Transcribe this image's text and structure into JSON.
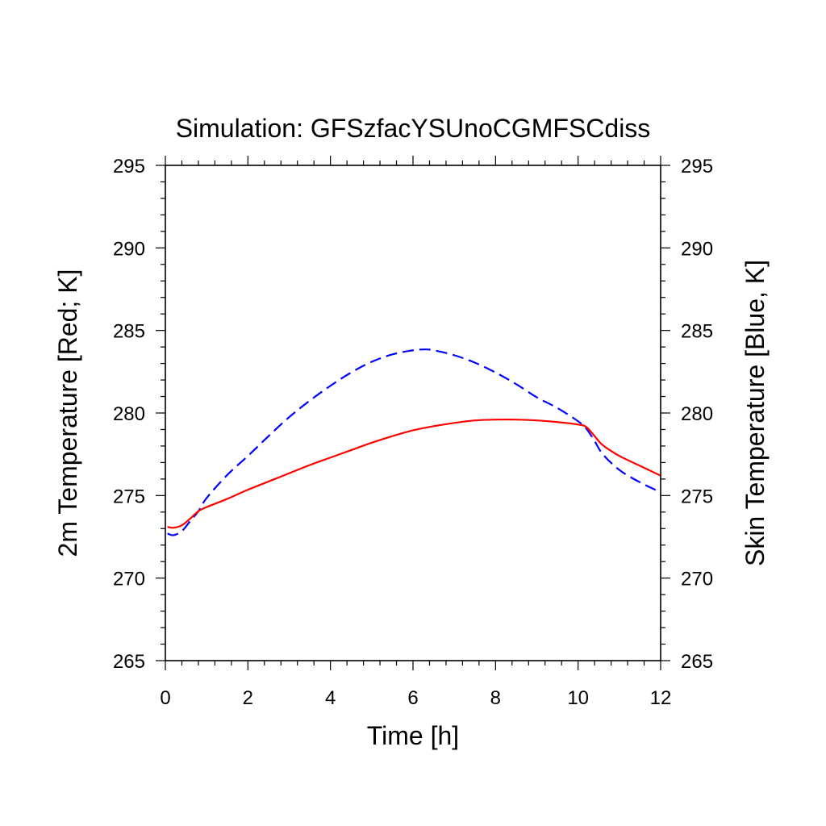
{
  "chart_data": {
    "type": "line",
    "title": "Simulation: GFSzfacYSUnoCGMFSCdiss",
    "xlabel": "Time [h]",
    "ylabel_left": "2m Temperature [Red; K]",
    "ylabel_right": "Skin Temperature [Blue, K]",
    "xlim": [
      0,
      12
    ],
    "ylim": [
      265,
      295
    ],
    "x_ticks": [
      "0",
      "2",
      "4",
      "6",
      "8",
      "10",
      "12"
    ],
    "y_ticks": [
      "265",
      "270",
      "275",
      "280",
      "285",
      "290",
      "295"
    ],
    "grid": false,
    "series": [
      {
        "axis": "left",
        "color": "#ff0000",
        "style": "solid",
        "x": [
          0.05,
          0.2,
          0.4,
          0.6,
          0.8,
          1.0,
          1.5,
          2.0,
          2.5,
          3.0,
          3.5,
          4.0,
          4.5,
          5.0,
          5.5,
          6.0,
          6.5,
          7.0,
          7.5,
          8.0,
          8.5,
          9.0,
          9.5,
          10.0,
          10.2,
          10.4,
          10.6,
          11.0,
          11.5,
          12.0
        ],
        "values": [
          273.1,
          273.05,
          273.2,
          273.6,
          274.05,
          274.3,
          274.8,
          275.35,
          275.85,
          276.35,
          276.85,
          277.3,
          277.75,
          278.2,
          278.6,
          278.95,
          279.2,
          279.4,
          279.55,
          279.6,
          279.6,
          279.55,
          279.45,
          279.3,
          279.15,
          278.6,
          278.05,
          277.4,
          276.8,
          276.2
        ]
      },
      {
        "axis": "right",
        "color": "#0000ff",
        "style": "dashed",
        "x": [
          0.05,
          0.2,
          0.4,
          0.6,
          0.8,
          1.0,
          1.5,
          2.0,
          2.5,
          3.0,
          3.5,
          4.0,
          4.5,
          5.0,
          5.5,
          6.0,
          6.3,
          6.5,
          7.0,
          7.5,
          8.0,
          8.5,
          9.0,
          9.5,
          10.0,
          10.2,
          10.4,
          10.6,
          11.0,
          11.5,
          12.0
        ],
        "values": [
          272.7,
          272.6,
          272.85,
          273.45,
          274.05,
          274.85,
          276.25,
          277.4,
          278.6,
          279.75,
          280.75,
          281.65,
          282.45,
          283.1,
          283.55,
          283.8,
          283.85,
          283.8,
          283.5,
          283.05,
          282.45,
          281.75,
          280.95,
          280.3,
          279.5,
          279.05,
          278.3,
          277.5,
          276.55,
          275.8,
          275.2
        ]
      }
    ]
  }
}
